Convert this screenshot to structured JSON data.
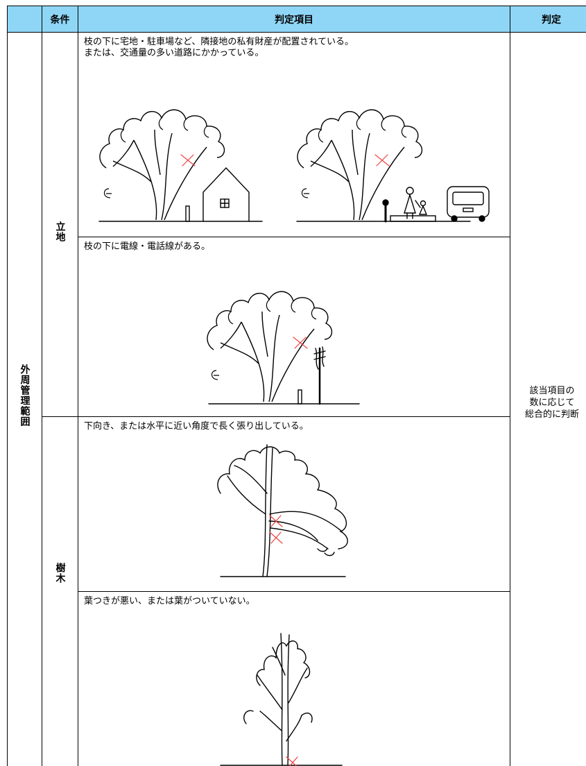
{
  "table": {
    "header": {
      "condition": "条件",
      "item": "判定項目",
      "judgment": "判定"
    },
    "group": "外周管理範囲",
    "sections": [
      {
        "condition": "立地",
        "items": [
          {
            "text": [
              "枝の下に宅地・駐車場など、隣接地の私有財産が配置されている。",
              "または、交通量の多い道路にかかっている。"
            ]
          },
          {
            "text": [
              "枝の下に電線・電話線がある。"
            ]
          }
        ]
      },
      {
        "condition": "樹木",
        "items": [
          {
            "text": [
              "下向き、または水平に近い角度で長く張り出している。"
            ]
          },
          {
            "text": [
              "葉つきが悪い、または葉がついていない。"
            ]
          }
        ]
      }
    ],
    "judgment": [
      "該当項目の",
      "数に応じて",
      "総合的に判断"
    ]
  }
}
